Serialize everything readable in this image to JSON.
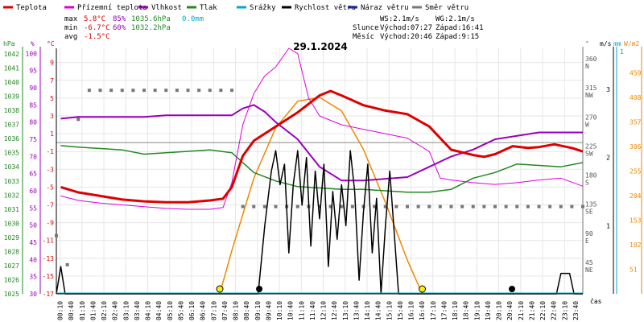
{
  "chart_data": {
    "type": "line",
    "title": "29.1.2024",
    "xlabel": "čas",
    "legend": [
      {
        "name": "Teplota",
        "color": "#dd0000"
      },
      {
        "name": "Přízemní teplota",
        "color": "#dd00dd"
      },
      {
        "name": "Vlhkost",
        "color": "#9900bb"
      },
      {
        "name": "Tlak",
        "color": "#228822"
      },
      {
        "name": "Srážky",
        "color": "#00aacc"
      },
      {
        "name": "Rychlost větru",
        "color": "#000000"
      },
      {
        "name": "Náraz větru",
        "color": "#2222aa"
      },
      {
        "name": "Směr větru",
        "color": "#777777"
      }
    ],
    "stats": {
      "max_label": "max",
      "max_temp": "5.8°C",
      "max_hum": "85%",
      "max_press": "1035.6hPa",
      "max_rain": "0.0mm",
      "min_label": "min",
      "min_temp": "-6.7°C",
      "min_hum": "60%",
      "min_press": "1032.2hPa",
      "avg_label": "avg",
      "avg_temp": "-1.5°C",
      "ws": "WS:2.1m/s",
      "wg": "WG:2.1m/s",
      "slunce_label": "Slunce",
      "slunce_vychod": "Východ:07:27",
      "slunce_zapad": "Západ:16:41",
      "mesic_label": "Měsíc",
      "mesic_vychod": "Východ:20:46",
      "mesic_zapad": "Západ:9:15"
    },
    "axes": {
      "hpa_title": "hPa",
      "pct_title": "%",
      "degc_title": "°C",
      "deg_title": "°",
      "ms_title": "m/s",
      "mm_title": "mm",
      "wm2_title": "W/m2",
      "hpa_ticks": [
        1025,
        1026,
        1027,
        1028,
        1029,
        1030,
        1031,
        1032,
        1033,
        1034,
        1035,
        1036,
        1037,
        1038,
        1039,
        1040,
        1041,
        1042
      ],
      "pct_ticks": [
        30,
        35,
        40,
        45,
        50,
        55,
        60,
        65,
        70,
        75,
        80,
        85,
        90,
        95,
        100
      ],
      "temp_ticks": [
        -17,
        -15,
        -13,
        -11,
        -9,
        -7,
        -5,
        -3,
        -1,
        1,
        3,
        5,
        7,
        9
      ],
      "dir_ticks": [
        {
          "value": 360,
          "label": "360",
          "sub": "N"
        },
        {
          "value": 315,
          "label": "315",
          "sub": "NW"
        },
        {
          "value": 270,
          "label": "270",
          "sub": "W"
        },
        {
          "value": 225,
          "label": "225",
          "sub": "SW"
        },
        {
          "value": 180,
          "label": "180",
          "sub": "S"
        },
        {
          "value": 135,
          "label": "135",
          "sub": "SE"
        },
        {
          "value": 90,
          "label": "90",
          "sub": "E"
        },
        {
          "value": 45,
          "label": "45",
          "sub": "NE"
        }
      ],
      "wind_ticks": [
        1,
        2,
        3
      ],
      "rain_ticks": [
        1
      ],
      "solar_ticks": [
        51,
        102,
        153,
        204,
        255,
        306,
        357,
        408,
        459
      ],
      "time_ticks": [
        "00:10",
        "00:40",
        "01:10",
        "01:40",
        "02:10",
        "02:40",
        "03:10",
        "03:40",
        "04:10",
        "04:40",
        "05:10",
        "05:40",
        "06:10",
        "06:40",
        "07:10",
        "07:40",
        "08:10",
        "08:40",
        "09:10",
        "09:40",
        "10:10",
        "10:40",
        "11:10",
        "11:40",
        "12:10",
        "12:40",
        "13:10",
        "13:40",
        "14:10",
        "14:40",
        "15:10",
        "15:40",
        "16:10",
        "16:40",
        "17:10",
        "17:40",
        "18:10",
        "18:40",
        "19:10",
        "19:40",
        "20:10",
        "20:40",
        "21:10",
        "21:40",
        "22:10",
        "22:40",
        "23:10",
        "23:40"
      ]
    },
    "series": [
      {
        "name": "Teplota",
        "unit": "°C",
        "points": [
          [
            0.2,
            -5
          ],
          [
            1,
            -5.6
          ],
          [
            2,
            -6
          ],
          [
            3,
            -6.4
          ],
          [
            4,
            -6.6
          ],
          [
            5,
            -6.7
          ],
          [
            6,
            -6.7
          ],
          [
            7,
            -6.5
          ],
          [
            7.6,
            -6.3
          ],
          [
            8,
            -5
          ],
          [
            8.5,
            -1.5
          ],
          [
            9,
            0.2
          ],
          [
            10,
            1.8
          ],
          [
            11,
            3.4
          ],
          [
            12,
            5.3
          ],
          [
            12.5,
            5.8
          ],
          [
            13,
            5.3
          ],
          [
            14,
            4.2
          ],
          [
            15,
            3.6
          ],
          [
            16,
            3.2
          ],
          [
            17,
            1.8
          ],
          [
            18,
            -0.8
          ],
          [
            19,
            -1.4
          ],
          [
            19.5,
            -1.6
          ],
          [
            20,
            -1.3
          ],
          [
            20.8,
            -0.4
          ],
          [
            21.5,
            -0.6
          ],
          [
            22,
            -0.5
          ],
          [
            22.7,
            -0.2
          ],
          [
            23.5,
            -0.6
          ],
          [
            24,
            -1
          ]
        ]
      },
      {
        "name": "Přízemní teplota",
        "unit": "°C",
        "points": [
          [
            0.2,
            -6
          ],
          [
            1,
            -6.5
          ],
          [
            2,
            -6.8
          ],
          [
            3,
            -7
          ],
          [
            4,
            -7.2
          ],
          [
            5,
            -7.4
          ],
          [
            6,
            -7.5
          ],
          [
            7,
            -7.5
          ],
          [
            7.6,
            -7.3
          ],
          [
            8,
            -4.5
          ],
          [
            8.5,
            2
          ],
          [
            9,
            5.5
          ],
          [
            9.5,
            7.5
          ],
          [
            10,
            8.5
          ],
          [
            10.6,
            10.6
          ],
          [
            11,
            10
          ],
          [
            11.5,
            5
          ],
          [
            12,
            3
          ],
          [
            12.5,
            2.5
          ],
          [
            13,
            2
          ],
          [
            14,
            1.5
          ],
          [
            15,
            1
          ],
          [
            16,
            0.5
          ],
          [
            17,
            -1
          ],
          [
            17.5,
            -4
          ],
          [
            18,
            -4.2
          ],
          [
            19,
            -4.5
          ],
          [
            20,
            -4.7
          ],
          [
            21,
            -4.5
          ],
          [
            22,
            -4.2
          ],
          [
            23,
            -4
          ],
          [
            24,
            -4.9
          ]
        ]
      },
      {
        "name": "Vlhkost",
        "unit": "%",
        "points": [
          [
            0.2,
            81
          ],
          [
            1,
            81.5
          ],
          [
            2,
            81.5
          ],
          [
            3,
            81.5
          ],
          [
            4,
            81.5
          ],
          [
            5,
            82
          ],
          [
            6,
            82
          ],
          [
            7,
            82
          ],
          [
            8,
            82
          ],
          [
            8.5,
            84
          ],
          [
            9,
            85
          ],
          [
            9.5,
            83
          ],
          [
            10,
            80
          ],
          [
            11,
            75
          ],
          [
            12,
            67
          ],
          [
            13,
            63
          ],
          [
            14,
            63
          ],
          [
            15,
            63.5
          ],
          [
            16,
            64
          ],
          [
            17,
            67
          ],
          [
            18,
            70
          ],
          [
            19,
            72
          ],
          [
            20,
            75
          ],
          [
            21,
            76
          ],
          [
            22,
            77
          ],
          [
            23,
            77
          ],
          [
            24,
            77
          ]
        ]
      },
      {
        "name": "Tlak",
        "unit": "hPa",
        "points": [
          [
            0.2,
            1035.5
          ],
          [
            1,
            1035.4
          ],
          [
            2,
            1035.3
          ],
          [
            3,
            1035.2
          ],
          [
            4,
            1034.9
          ],
          [
            5,
            1035
          ],
          [
            6,
            1035.1
          ],
          [
            7,
            1035.2
          ],
          [
            8,
            1035
          ],
          [
            9,
            1033.6
          ],
          [
            10,
            1033
          ],
          [
            11,
            1032.6
          ],
          [
            12,
            1032.5
          ],
          [
            13,
            1032.4
          ],
          [
            14,
            1032.4
          ],
          [
            15,
            1032.3
          ],
          [
            16,
            1032.2
          ],
          [
            17,
            1032.2
          ],
          [
            18,
            1032.4
          ],
          [
            19,
            1033.2
          ],
          [
            20,
            1033.6
          ],
          [
            21,
            1034.2
          ],
          [
            22,
            1034.1
          ],
          [
            23,
            1034
          ],
          [
            24,
            1034.3
          ]
        ]
      },
      {
        "name": "Rychlost větru",
        "unit": "m/s",
        "points": [
          [
            0,
            0
          ],
          [
            0.2,
            0.4
          ],
          [
            0.4,
            0
          ],
          [
            9.2,
            0
          ],
          [
            9.5,
            1
          ],
          [
            9.8,
            1.8
          ],
          [
            10,
            2.1
          ],
          [
            10.2,
            1.6
          ],
          [
            10.4,
            1.9
          ],
          [
            10.6,
            0.6
          ],
          [
            10.8,
            1.6
          ],
          [
            11,
            2.1
          ],
          [
            11.2,
            1.3
          ],
          [
            11.4,
            2
          ],
          [
            11.6,
            0.7
          ],
          [
            11.8,
            1.8
          ],
          [
            12,
            1.1
          ],
          [
            12.2,
            1.9
          ],
          [
            12.4,
            0.4
          ],
          [
            12.6,
            1.5
          ],
          [
            12.8,
            0.8
          ],
          [
            13,
            1.6
          ],
          [
            13.2,
            1
          ],
          [
            13.4,
            2.1
          ],
          [
            13.6,
            1.5
          ],
          [
            13.8,
            0.2
          ],
          [
            14,
            1.2
          ],
          [
            14.2,
            1.9
          ],
          [
            14.4,
            0.6
          ],
          [
            14.6,
            1.4
          ],
          [
            14.8,
            0
          ],
          [
            15,
            1
          ],
          [
            15.2,
            1.8
          ],
          [
            15.4,
            0.9
          ],
          [
            15.6,
            0
          ],
          [
            22.8,
            0
          ],
          [
            23,
            0.3
          ],
          [
            23.4,
            0.3
          ],
          [
            23.6,
            0
          ],
          [
            24,
            0
          ]
        ]
      },
      {
        "name": "Slunce",
        "unit": "W/m2",
        "points": [
          [
            7.45,
            0
          ],
          [
            8,
            90
          ],
          [
            9,
            240
          ],
          [
            10,
            345
          ],
          [
            11,
            400
          ],
          [
            12,
            408
          ],
          [
            13,
            380
          ],
          [
            14,
            300
          ],
          [
            15,
            190
          ],
          [
            16,
            70
          ],
          [
            16.68,
            0
          ]
        ]
      }
    ],
    "wind_dir_samples": [
      [
        0,
        90
      ],
      [
        0.5,
        45
      ],
      [
        1,
        270
      ],
      [
        1.5,
        315
      ],
      [
        2,
        315
      ],
      [
        2.5,
        315
      ],
      [
        3,
        315
      ],
      [
        3.5,
        315
      ],
      [
        4,
        315
      ],
      [
        4.5,
        315
      ],
      [
        5,
        315
      ],
      [
        5.5,
        315
      ],
      [
        6,
        315
      ],
      [
        6.5,
        315
      ],
      [
        7,
        315
      ],
      [
        7.5,
        315
      ],
      [
        8,
        315
      ],
      [
        8.5,
        135
      ],
      [
        9,
        135
      ],
      [
        9.5,
        135
      ],
      [
        10,
        135
      ],
      [
        10.5,
        135
      ],
      [
        11,
        135
      ],
      [
        11.5,
        135
      ],
      [
        12,
        135
      ],
      [
        12.5,
        135
      ],
      [
        13,
        135
      ],
      [
        13.5,
        135
      ],
      [
        14,
        135
      ],
      [
        14.5,
        135
      ],
      [
        15,
        135
      ],
      [
        15.5,
        135
      ],
      [
        16,
        135
      ],
      [
        16.5,
        135
      ],
      [
        17,
        135
      ],
      [
        17.5,
        135
      ],
      [
        18,
        135
      ],
      [
        18.5,
        135
      ],
      [
        19,
        135
      ],
      [
        19.5,
        135
      ],
      [
        20,
        135
      ],
      [
        20.5,
        135
      ],
      [
        21,
        135
      ],
      [
        21.5,
        135
      ],
      [
        22,
        135
      ],
      [
        22.5,
        135
      ],
      [
        23,
        135
      ],
      [
        23.5,
        135
      ],
      [
        24,
        135
      ]
    ],
    "markers": [
      {
        "name": "sunrise",
        "time": 7.45
      },
      {
        "name": "sunset",
        "time": 16.68
      },
      {
        "name": "moonset",
        "time": 9.25
      },
      {
        "name": "moonrise",
        "time": 20.77
      }
    ]
  }
}
